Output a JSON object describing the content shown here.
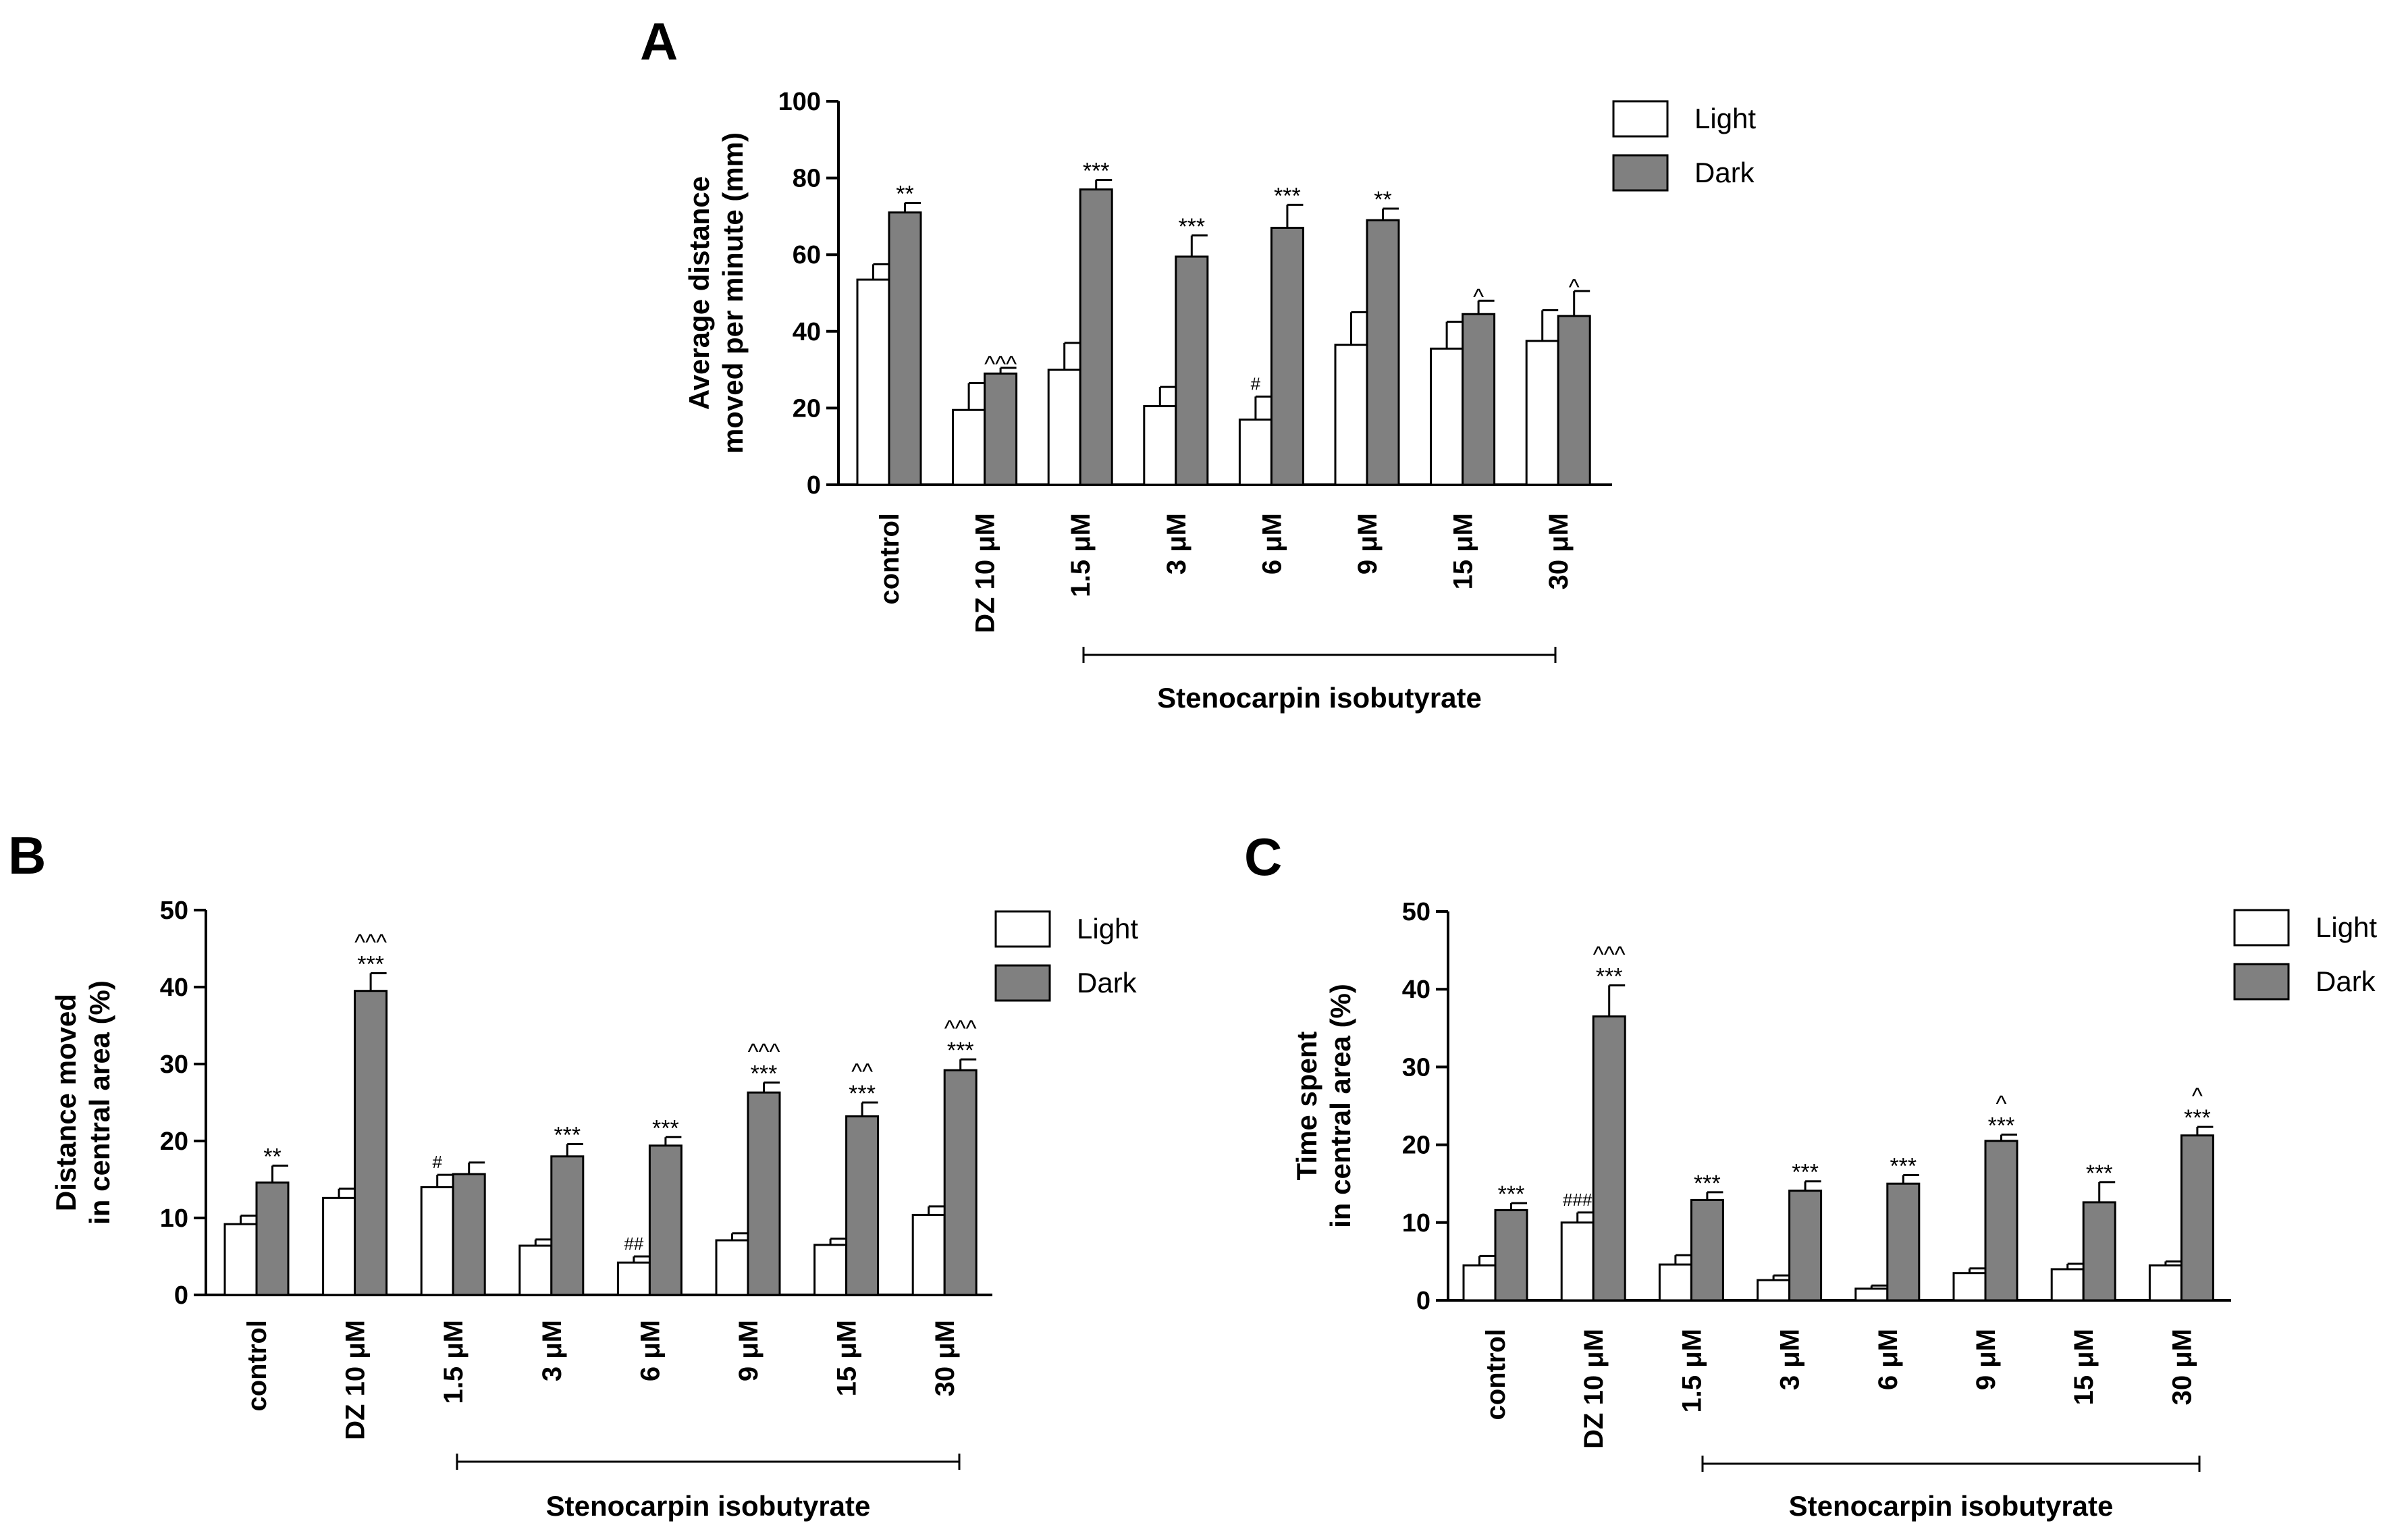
{
  "colors": {
    "light_fill": "#ffffff",
    "dark_fill": "#808080",
    "stroke": "#000000"
  },
  "legend": {
    "light": "Light",
    "dark": "Dark"
  },
  "categories_display": [
    "control",
    "DZ 10 μM",
    "1.5 μM",
    "3 μM",
    "6 μM",
    "9 μM",
    "15 μM",
    "30 μM"
  ],
  "chart_data": [
    {
      "type": "bar",
      "panel": "A",
      "ylabel": [
        "Average distance",
        "moved per minute (mm)"
      ],
      "ylim": [
        0,
        100
      ],
      "yticks": [
        0,
        20,
        40,
        60,
        80,
        100
      ],
      "categories": [
        "control",
        "DZ 10 μM",
        "1.5 μM",
        "3 μM",
        "6 μM",
        "9 μM",
        "15 μM",
        "30 μM"
      ],
      "group_label": "Stenocarpin isobutyrate",
      "series": [
        {
          "name": "Light",
          "values": [
            53.5,
            19.5,
            30,
            20.5,
            17,
            36.5,
            35.5,
            37.5
          ],
          "errors": [
            4,
            7,
            7,
            5,
            6,
            8.5,
            7,
            8
          ]
        },
        {
          "name": "Dark",
          "values": [
            71,
            29,
            77,
            59.5,
            67,
            69,
            44.5,
            44
          ],
          "errors": [
            2.5,
            1.5,
            2.5,
            5.5,
            6,
            3,
            3.5,
            6.5
          ]
        }
      ],
      "annotations": {
        "light": [
          "",
          "",
          "",
          "",
          "#",
          "",
          "",
          ""
        ],
        "dark_top": [
          "",
          "^^^",
          "",
          "",
          "",
          "",
          "^",
          "^"
        ],
        "dark_bottom": [
          "**",
          "",
          "***",
          "***",
          "***",
          "**",
          "",
          ""
        ]
      }
    },
    {
      "type": "bar",
      "panel": "B",
      "ylabel": [
        "Distance moved",
        "in central area (%)"
      ],
      "ylim": [
        0,
        50
      ],
      "yticks": [
        0,
        10,
        20,
        30,
        40,
        50
      ],
      "categories": [
        "control",
        "DZ 10 μM",
        "1.5 μM",
        "3 μM",
        "6 μM",
        "9 μM",
        "15 μM",
        "30 μM"
      ],
      "group_label": "Stenocarpin isobutyrate",
      "series": [
        {
          "name": "Light",
          "values": [
            9.2,
            12.6,
            14,
            6.4,
            4.2,
            7.1,
            6.5,
            10.4
          ],
          "errors": [
            1.1,
            1.2,
            1.6,
            0.8,
            0.8,
            0.9,
            0.8,
            1.1
          ]
        },
        {
          "name": "Dark",
          "values": [
            14.6,
            39.5,
            15.7,
            18,
            19.4,
            26.3,
            23.2,
            29.2
          ],
          "errors": [
            2.2,
            2.3,
            1.5,
            1.6,
            1.1,
            1.3,
            1.8,
            1.4
          ]
        }
      ],
      "annotations": {
        "light": [
          "",
          "",
          "#",
          "",
          "##",
          "",
          "",
          ""
        ],
        "dark_top": [
          "",
          "^^^",
          "",
          "",
          "",
          "^^^",
          "^^",
          "^^^"
        ],
        "dark_bottom": [
          "**",
          "***",
          "",
          "***",
          "***",
          "***",
          "***",
          "***"
        ]
      }
    },
    {
      "type": "bar",
      "panel": "C",
      "ylabel": [
        "Time spent",
        "in central area (%)"
      ],
      "ylim": [
        0,
        50
      ],
      "yticks": [
        0,
        10,
        20,
        30,
        40,
        50
      ],
      "categories": [
        "control",
        "DZ 10 μM",
        "1.5 μM",
        "3 μM",
        "6 μM",
        "9 μM",
        "15 μM",
        "30 μM"
      ],
      "group_label": "Stenocarpin isobutyrate",
      "series": [
        {
          "name": "Light",
          "values": [
            4.5,
            10,
            4.6,
            2.6,
            1.5,
            3.5,
            4,
            4.5
          ],
          "errors": [
            1.2,
            1.3,
            1.2,
            0.6,
            0.4,
            0.6,
            0.7,
            0.5
          ]
        },
        {
          "name": "Dark",
          "values": [
            11.6,
            36.5,
            12.9,
            14.1,
            15,
            20.5,
            12.6,
            21.2
          ],
          "errors": [
            0.9,
            4,
            1,
            1.2,
            1.1,
            0.8,
            2.6,
            1.1
          ]
        }
      ],
      "annotations": {
        "light": [
          "",
          "###",
          "",
          "",
          "",
          "",
          "",
          ""
        ],
        "dark_top": [
          "",
          "^^^",
          "",
          "",
          "",
          "^",
          "",
          "^"
        ],
        "dark_bottom": [
          "***",
          "***",
          "***",
          "***",
          "***",
          "***",
          "***",
          "***"
        ]
      }
    }
  ]
}
